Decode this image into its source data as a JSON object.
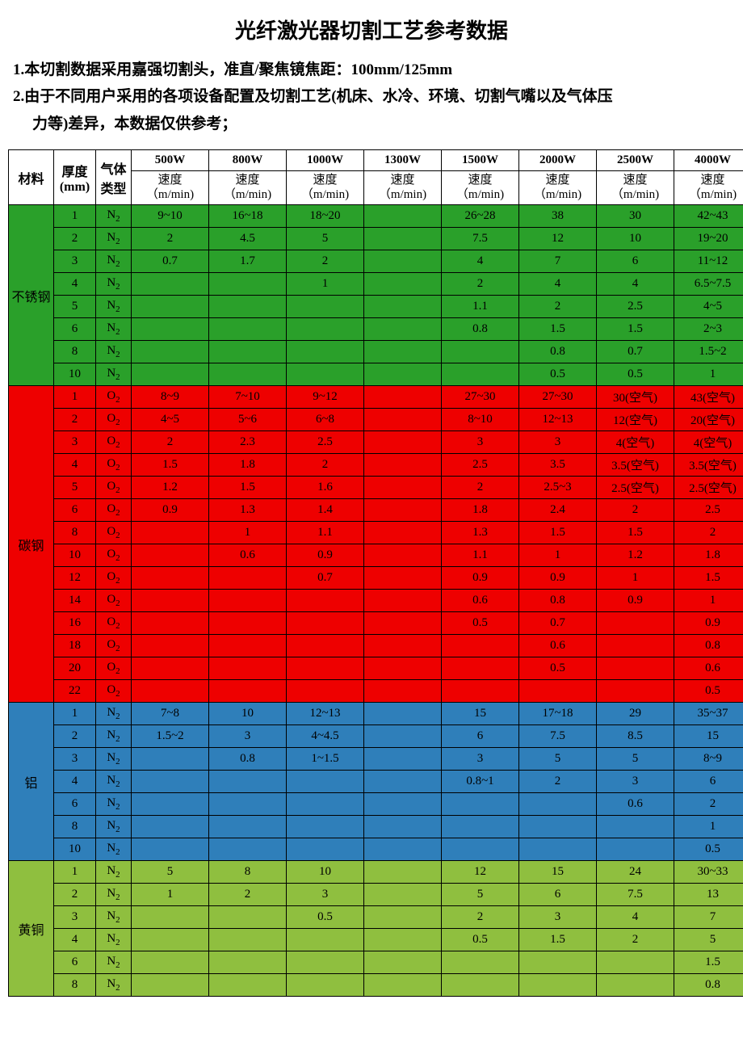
{
  "title": "光纤激光器切割工艺参考数据",
  "notes": [
    "1.本切割数据采用嘉强切割头，准直/聚焦镜焦距：100mm/125mm",
    "2.由于不同用户采用的各项设备配置及切割工艺(机床、水冷、环境、切割气嘴以及气体压",
    "力等)差异，本数据仅供参考；"
  ],
  "headers": {
    "material": "材料",
    "thickness": "厚度\n(mm)",
    "gas": "气体\n类型",
    "powers": [
      "500W",
      "800W",
      "1000W",
      "1300W",
      "1500W",
      "2000W",
      "2500W",
      "4000W"
    ],
    "speed_label": "速度\n（m/min)"
  },
  "materials": [
    {
      "name": "不锈钢",
      "color": "#2aa02a",
      "rows": [
        {
          "t": "1",
          "g": "N2",
          "v": [
            "9~10",
            "16~18",
            "18~20",
            "",
            "26~28",
            "38",
            "30",
            "42~43"
          ]
        },
        {
          "t": "2",
          "g": "N2",
          "v": [
            "2",
            "4.5",
            "5",
            "",
            "7.5",
            "12",
            "10",
            "19~20"
          ]
        },
        {
          "t": "3",
          "g": "N2",
          "v": [
            "0.7",
            "1.7",
            "2",
            "",
            "4",
            "7",
            "6",
            "11~12"
          ]
        },
        {
          "t": "4",
          "g": "N2",
          "v": [
            "",
            "",
            "1",
            "",
            "2",
            "4",
            "4",
            "6.5~7.5"
          ]
        },
        {
          "t": "5",
          "g": "N2",
          "v": [
            "",
            "",
            "",
            "",
            "1.1",
            "2",
            "2.5",
            "4~5"
          ]
        },
        {
          "t": "6",
          "g": "N2",
          "v": [
            "",
            "",
            "",
            "",
            "0.8",
            "1.5",
            "1.5",
            "2~3"
          ]
        },
        {
          "t": "8",
          "g": "N2",
          "v": [
            "",
            "",
            "",
            "",
            "",
            "0.8",
            "0.7",
            "1.5~2"
          ]
        },
        {
          "t": "10",
          "g": "N2",
          "v": [
            "",
            "",
            "",
            "",
            "",
            "0.5",
            "0.5",
            "1"
          ]
        }
      ]
    },
    {
      "name": "碳钢",
      "color": "#ee0000",
      "rows": [
        {
          "t": "1",
          "g": "O2",
          "v": [
            "8~9",
            "7~10",
            "9~12",
            "",
            "27~30",
            "27~30",
            "30(空气)",
            "43(空气)"
          ]
        },
        {
          "t": "2",
          "g": "O2",
          "v": [
            "4~5",
            "5~6",
            "6~8",
            "",
            "8~10",
            "12~13",
            "12(空气)",
            "20(空气)"
          ]
        },
        {
          "t": "3",
          "g": "O2",
          "v": [
            "2",
            "2.3",
            "2.5",
            "",
            "3",
            "3",
            "4(空气)",
            "4(空气)"
          ]
        },
        {
          "t": "4",
          "g": "O2",
          "v": [
            "1.5",
            "1.8",
            "2",
            "",
            "2.5",
            "3.5",
            "3.5(空气)",
            "3.5(空气)"
          ]
        },
        {
          "t": "5",
          "g": "O2",
          "v": [
            "1.2",
            "1.5",
            "1.6",
            "",
            "2",
            "2.5~3",
            "2.5(空气)",
            "2.5(空气)"
          ]
        },
        {
          "t": "6",
          "g": "O2",
          "v": [
            "0.9",
            "1.3",
            "1.4",
            "",
            "1.8",
            "2.4",
            "2",
            "2.5"
          ]
        },
        {
          "t": "8",
          "g": "O2",
          "v": [
            "",
            "1",
            "1.1",
            "",
            "1.3",
            "1.5",
            "1.5",
            "2"
          ]
        },
        {
          "t": "10",
          "g": "O2",
          "v": [
            "",
            "0.6",
            "0.9",
            "",
            "1.1",
            "1",
            "1.2",
            "1.8"
          ]
        },
        {
          "t": "12",
          "g": "O2",
          "v": [
            "",
            "",
            "0.7",
            "",
            "0.9",
            "0.9",
            "1",
            "1.5"
          ]
        },
        {
          "t": "14",
          "g": "O2",
          "v": [
            "",
            "",
            "",
            "",
            "0.6",
            "0.8",
            "0.9",
            "1"
          ]
        },
        {
          "t": "16",
          "g": "O2",
          "v": [
            "",
            "",
            "",
            "",
            "0.5",
            "0.7",
            "",
            "0.9"
          ]
        },
        {
          "t": "18",
          "g": "O2",
          "v": [
            "",
            "",
            "",
            "",
            "",
            "0.6",
            "",
            "0.8"
          ]
        },
        {
          "t": "20",
          "g": "O2",
          "v": [
            "",
            "",
            "",
            "",
            "",
            "0.5",
            "",
            "0.6"
          ]
        },
        {
          "t": "22",
          "g": "O2",
          "v": [
            "",
            "",
            "",
            "",
            "",
            "",
            "",
            "0.5"
          ]
        }
      ]
    },
    {
      "name": "铝",
      "color": "#2f7fba",
      "rows": [
        {
          "t": "1",
          "g": "N2",
          "v": [
            "7~8",
            "10",
            "12~13",
            "",
            "15",
            "17~18",
            "29",
            "35~37"
          ]
        },
        {
          "t": "2",
          "g": "N2",
          "v": [
            "1.5~2",
            "3",
            "4~4.5",
            "",
            "6",
            "7.5",
            "8.5",
            "15"
          ]
        },
        {
          "t": "3",
          "g": "N2",
          "v": [
            "",
            "0.8",
            "1~1.5",
            "",
            "3",
            "5",
            "5",
            "8~9"
          ]
        },
        {
          "t": "4",
          "g": "N2",
          "v": [
            "",
            "",
            "",
            "",
            "0.8~1",
            "2",
            "3",
            "6"
          ]
        },
        {
          "t": "6",
          "g": "N2",
          "v": [
            "",
            "",
            "",
            "",
            "",
            "",
            "0.6",
            "2"
          ]
        },
        {
          "t": "8",
          "g": "N2",
          "v": [
            "",
            "",
            "",
            "",
            "",
            "",
            "",
            "1"
          ]
        },
        {
          "t": "10",
          "g": "N2",
          "v": [
            "",
            "",
            "",
            "",
            "",
            "",
            "",
            "0.5"
          ]
        }
      ]
    },
    {
      "name": "黄铜",
      "color": "#8fbf3f",
      "rows": [
        {
          "t": "1",
          "g": "N2",
          "v": [
            "5",
            "8",
            "10",
            "",
            "12",
            "15",
            "24",
            "30~33"
          ]
        },
        {
          "t": "2",
          "g": "N2",
          "v": [
            "1",
            "2",
            "3",
            "",
            "5",
            "6",
            "7.5",
            "13"
          ]
        },
        {
          "t": "3",
          "g": "N2",
          "v": [
            "",
            "",
            "0.5",
            "",
            "2",
            "3",
            "4",
            "7"
          ]
        },
        {
          "t": "4",
          "g": "N2",
          "v": [
            "",
            "",
            "",
            "",
            "0.5",
            "1.5",
            "2",
            "5"
          ]
        },
        {
          "t": "6",
          "g": "N2",
          "v": [
            "",
            "",
            "",
            "",
            "",
            "",
            "",
            "1.5"
          ]
        },
        {
          "t": "8",
          "g": "N2",
          "v": [
            "",
            "",
            "",
            "",
            "",
            "",
            "",
            "0.8"
          ]
        }
      ]
    }
  ]
}
